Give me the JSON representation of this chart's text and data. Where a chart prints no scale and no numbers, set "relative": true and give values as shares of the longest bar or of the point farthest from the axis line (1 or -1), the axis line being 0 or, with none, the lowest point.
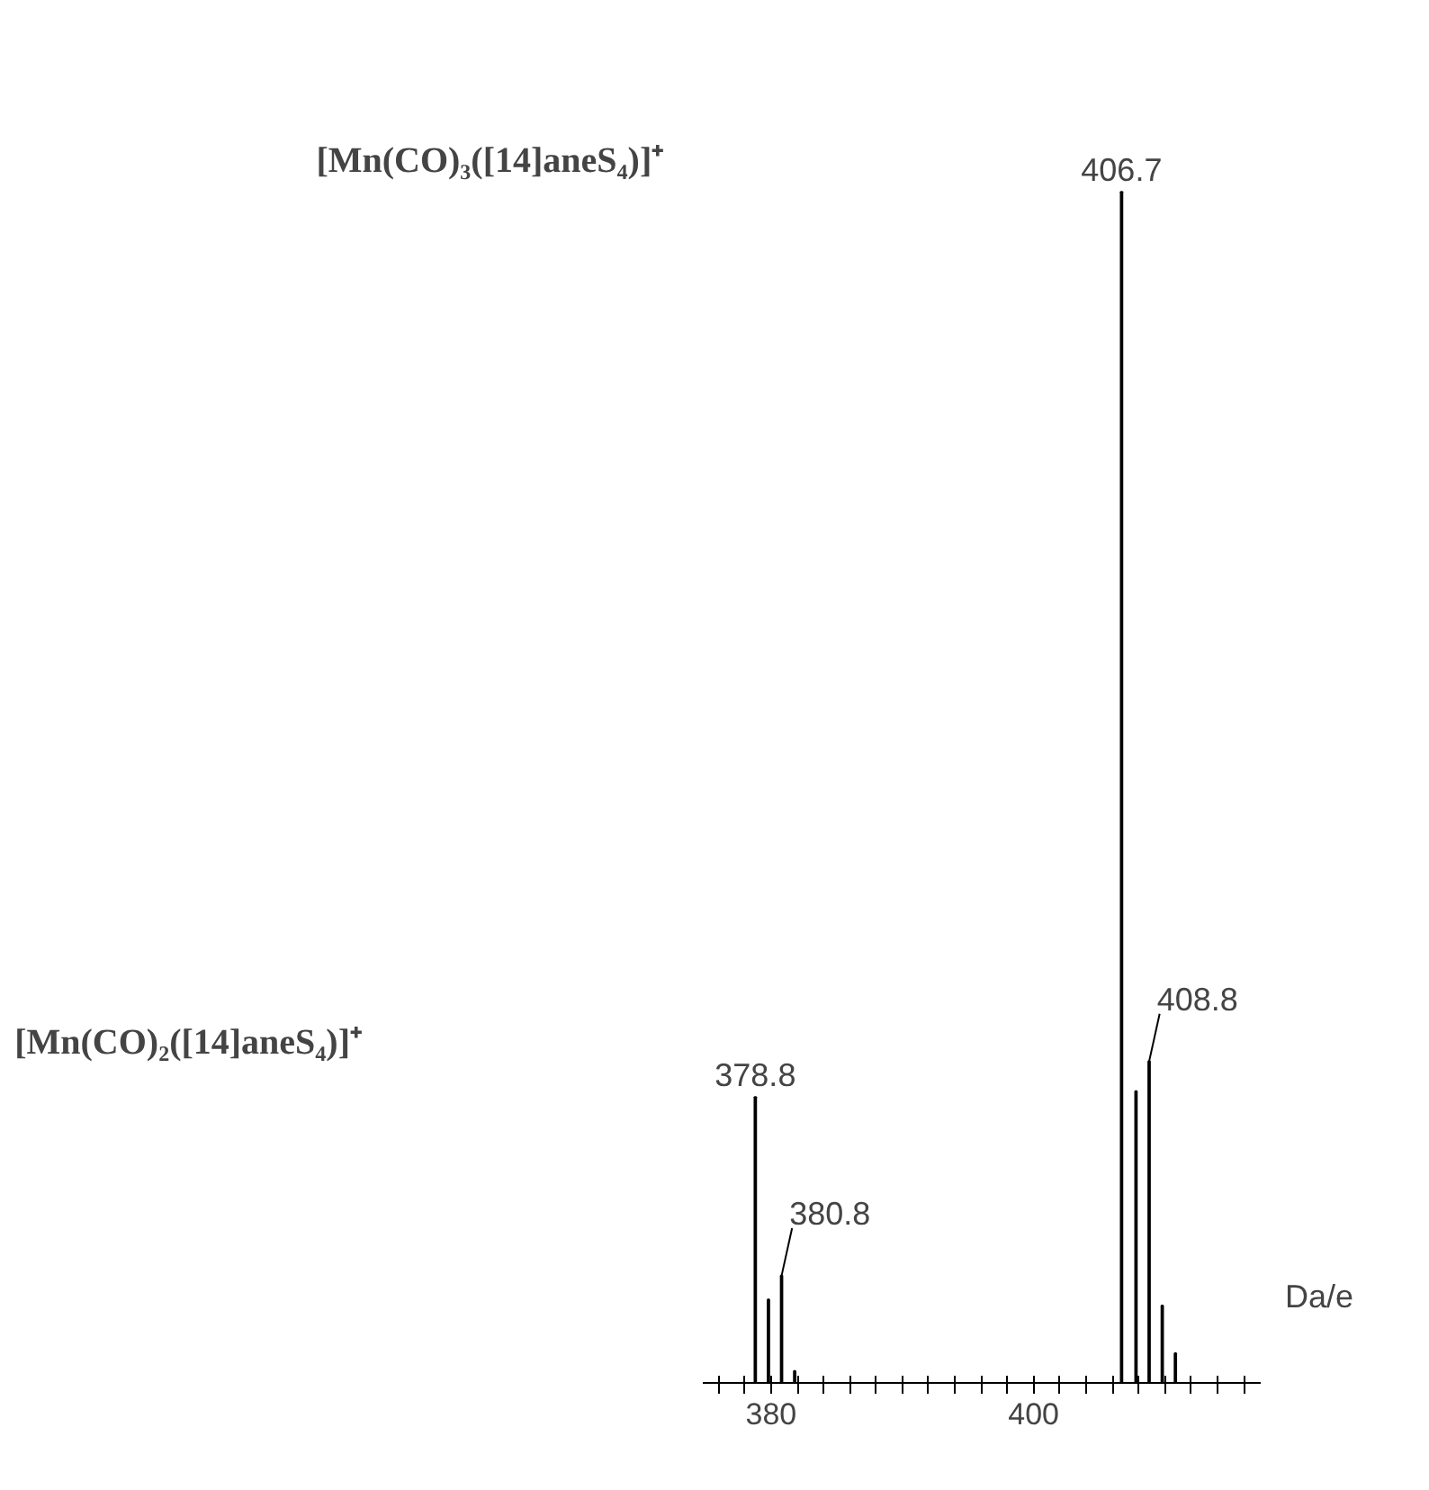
{
  "chart_data": {
    "type": "bar",
    "relative": true,
    "xlabel": "Da/e",
    "x": [
      378.8,
      379.8,
      380.8,
      381.8,
      406.7,
      407.8,
      408.8,
      409.8,
      410.8
    ],
    "values": [
      0.24,
      0.07,
      0.09,
      0.01,
      1,
      0.245,
      0.27,
      0.065,
      0.025
    ],
    "color": "#000000",
    "xlim": [
      374.8,
      417.3
    ],
    "xticks": [
      {
        "value": 376,
        "label": null
      },
      {
        "value": 378,
        "label": null
      },
      380,
      {
        "value": 382,
        "label": null
      },
      {
        "value": 384,
        "label": null
      },
      {
        "value": 386,
        "label": null
      },
      {
        "value": 388,
        "label": null
      },
      {
        "value": 390,
        "label": null
      },
      {
        "value": 392,
        "label": null
      },
      {
        "value": 394,
        "label": null
      },
      {
        "value": 396,
        "label": null
      },
      {
        "value": 398,
        "label": null
      },
      400,
      {
        "value": 402,
        "label": null
      },
      {
        "value": 404,
        "label": null
      },
      {
        "value": 406,
        "label": null
      },
      {
        "value": 408,
        "label": null
      },
      {
        "value": 410,
        "label": null
      },
      {
        "value": 412,
        "label": null
      },
      {
        "value": 414,
        "label": null
      },
      {
        "value": 416,
        "label": null
      }
    ],
    "annotations": [
      "[Mn(CO)₃([14]aneS₄)]⁺",
      "[Mn(CO)₂([14]aneS₄)]⁺",
      {
        "text": "378.8",
        "x": 378.8,
        "y": 0.24
      },
      {
        "text": "380.8",
        "x": 380.8,
        "y": 0.09
      },
      {
        "text": "406.7",
        "x": 406.7,
        "y": 1
      },
      {
        "text": "408.8",
        "x": 408.8,
        "y": 0.27
      }
    ]
  }
}
